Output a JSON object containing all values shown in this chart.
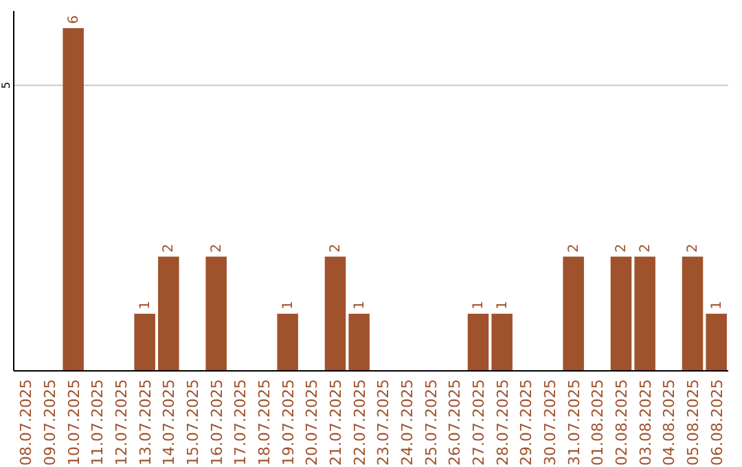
{
  "chart_data": {
    "type": "bar",
    "categories": [
      "08.07.2025",
      "09.07.2025",
      "10.07.2025",
      "11.07.2025",
      "12.07.2025",
      "13.07.2025",
      "14.07.2025",
      "15.07.2025",
      "16.07.2025",
      "17.07.2025",
      "18.07.2025",
      "19.07.2025",
      "20.07.2025",
      "21.07.2025",
      "22.07.2025",
      "23.07.2025",
      "24.07.2025",
      "25.07.2025",
      "26.07.2025",
      "27.07.2025",
      "28.07.2025",
      "29.07.2025",
      "30.07.2025",
      "31.07.2025",
      "01.08.2025",
      "02.08.2025",
      "03.08.2025",
      "04.08.2025",
      "05.08.2025",
      "06.08.2025"
    ],
    "values": [
      0,
      0,
      6,
      0,
      0,
      1,
      2,
      0,
      2,
      0,
      0,
      1,
      0,
      2,
      1,
      0,
      0,
      0,
      0,
      1,
      1,
      0,
      0,
      2,
      0,
      2,
      2,
      0,
      2,
      1
    ],
    "value_labels": [
      null,
      null,
      "6",
      null,
      null,
      "1",
      "2",
      null,
      "2",
      null,
      null,
      "1",
      null,
      "2",
      "1",
      null,
      null,
      null,
      null,
      "1",
      "1",
      null,
      null,
      "2",
      null,
      "2",
      "2",
      null,
      "2",
      "1"
    ],
    "color": "#a0522d",
    "ylim": [
      0,
      6.3
    ],
    "yticks": [
      5
    ],
    "grid": "y"
  }
}
